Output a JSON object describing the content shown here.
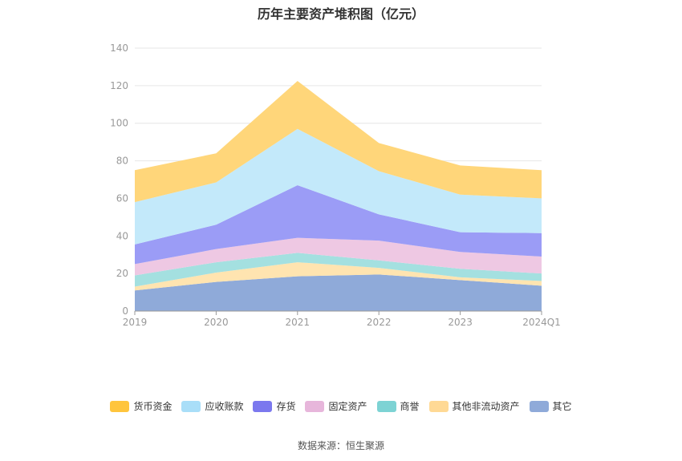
{
  "title": "历年主要资产堆积图（亿元）",
  "source": "数据来源：恒生聚源",
  "chart_data": {
    "type": "area",
    "stacked": true,
    "categories": [
      "2019",
      "2020",
      "2021",
      "2022",
      "2023",
      "2024Q1"
    ],
    "ylim": [
      0,
      140
    ],
    "yticks": [
      0,
      20,
      40,
      60,
      80,
      100,
      120,
      140
    ],
    "grid": true,
    "legend_position": "bottom",
    "series": [
      {
        "name": "其它",
        "color": "#8FAAD9",
        "legend_color": "#8FAAD9",
        "values": [
          11,
          15.5,
          18.5,
          19.5,
          16.5,
          13.5
        ]
      },
      {
        "name": "其他非流动资产",
        "color": "#FFE4B0",
        "legend_color": "#FFD995",
        "values": [
          2,
          5,
          7.5,
          3.5,
          1.5,
          2.5
        ]
      },
      {
        "name": "商誉",
        "color": "#A4E0E0",
        "legend_color": "#7DD3D4",
        "values": [
          6,
          5.5,
          5,
          4,
          4.5,
          4
        ]
      },
      {
        "name": "固定资产",
        "color": "#EEC8E3",
        "legend_color": "#E7B6DB",
        "values": [
          6,
          7,
          8,
          10.5,
          9,
          9
        ]
      },
      {
        "name": "存货",
        "color": "#9B9CF6",
        "legend_color": "#7B78EE",
        "values": [
          10.5,
          13,
          28,
          14,
          10.5,
          12.5
        ]
      },
      {
        "name": "应收账款",
        "color": "#C3E9FA",
        "legend_color": "#A9DEF8",
        "values": [
          22.5,
          22.5,
          30,
          23,
          20,
          18.5
        ]
      },
      {
        "name": "货币资金",
        "color": "#FFD67A",
        "legend_color": "#FFC53D",
        "values": [
          17,
          15.5,
          25.5,
          15,
          15.5,
          15
        ]
      }
    ]
  }
}
